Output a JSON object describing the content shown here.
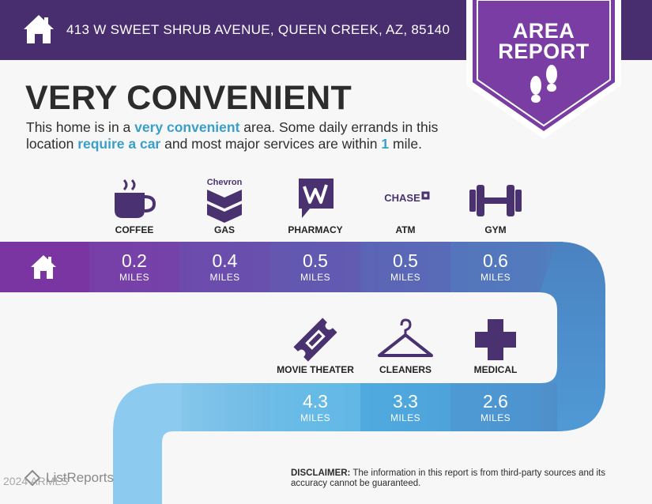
{
  "header": {
    "address": "413 W SWEET SHRUB AVENUE, QUEEN CREEK, AZ, 85140"
  },
  "badge": {
    "line1": "AREA",
    "line2": "REPORT"
  },
  "title": "VERY CONVENIENT",
  "description": {
    "p1": "This home is in a ",
    "h1": "very convenient",
    "p2": " area. Some daily errands in this location ",
    "h2": "require a car",
    "p3": " and most major services are within ",
    "h3": "1",
    "p4": " mile."
  },
  "row1": [
    {
      "label": "COFFEE",
      "value": "0.2",
      "unit": "MILES",
      "icon": "coffee-cup-icon"
    },
    {
      "label": "GAS",
      "value": "0.4",
      "unit": "MILES",
      "icon": "chevron-logo-icon"
    },
    {
      "label": "PHARMACY",
      "value": "0.5",
      "unit": "MILES",
      "icon": "walgreens-logo-icon"
    },
    {
      "label": "ATM",
      "value": "0.5",
      "unit": "MILES",
      "icon": "chase-logo-icon"
    },
    {
      "label": "GYM",
      "value": "0.6",
      "unit": "MILES",
      "icon": "dumbbell-icon"
    }
  ],
  "row2": [
    {
      "label": "MOVIE THEATER",
      "value": "4.3",
      "unit": "MILES",
      "icon": "ticket-icon"
    },
    {
      "label": "CLEANERS",
      "value": "3.3",
      "unit": "MILES",
      "icon": "hanger-icon"
    },
    {
      "label": "MEDICAL",
      "value": "2.6",
      "unit": "MILES",
      "icon": "medical-cross-icon"
    }
  ],
  "logo_text": {
    "chevron": "Chevron",
    "chase": "CHASE"
  },
  "brand": {
    "name": "ListReports",
    "copyright": "2024 ARMLS"
  },
  "disclaimer": {
    "label": "DISCLAIMER:",
    "text": " The information in this report is from third-party sources and its accuracy cannot be guaranteed."
  },
  "colors": {
    "header": "#482e6e",
    "badge": "#7a3da3",
    "accent": "#3a9fc8",
    "row1_start": "#7a3da3",
    "row1_end": "#4d86c2",
    "row2": "#4ea8db"
  }
}
